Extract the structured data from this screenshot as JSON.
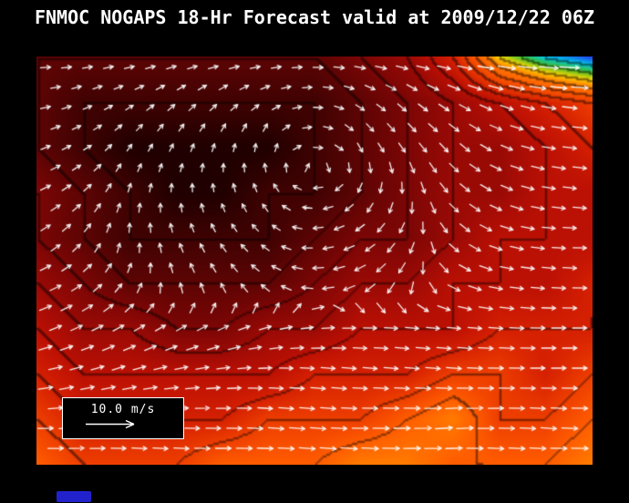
{
  "header": {
    "title": "FNMOC NOGAPS 18-Hr Forecast valid at 2009/12/22 06Z"
  },
  "legend": {
    "label": "10.0 m/s"
  },
  "colors": {
    "background": "#000000",
    "title_text": "#ffffff",
    "arrow": "#ffffff",
    "legend_border": "#ffffff",
    "legend_background": "#000000",
    "contour_line": "#000000",
    "footer_mark": "#2222cc"
  },
  "chart_data": {
    "type": "heatmap",
    "title": "FNMOC NOGAPS 18-Hr Forecast valid at 2009/12/22 06Z",
    "field": "wind speed shown as filled color contours",
    "overlay": "wind direction arrows (white vectors)",
    "legend_reference": "10.0 m/s",
    "axes_visible": false,
    "grid_rows": 10,
    "grid_cols": 13,
    "speed_levels_note": "relative color levels estimated from pixels; 0 = darkest maroon (upper-left core), 13 = blue (top-right jet maximum)",
    "speed_grid": [
      [
        2,
        2,
        2,
        2,
        2,
        2,
        2,
        3,
        4,
        6,
        10,
        12,
        13
      ],
      [
        2,
        1,
        1,
        1,
        1,
        1,
        1,
        2,
        3,
        4,
        5,
        6,
        7
      ],
      [
        2,
        1,
        0,
        0,
        0,
        0,
        1,
        2,
        3,
        4,
        4,
        5,
        6
      ],
      [
        3,
        2,
        1,
        0,
        0,
        1,
        1,
        2,
        3,
        4,
        4,
        5,
        5
      ],
      [
        3,
        2,
        1,
        1,
        1,
        1,
        2,
        3,
        3,
        4,
        5,
        5,
        5
      ],
      [
        4,
        3,
        2,
        2,
        2,
        2,
        3,
        4,
        4,
        5,
        5,
        5,
        6
      ],
      [
        5,
        4,
        4,
        3,
        3,
        4,
        4,
        5,
        5,
        5,
        6,
        6,
        6
      ],
      [
        6,
        5,
        5,
        5,
        5,
        5,
        6,
        6,
        6,
        7,
        7,
        6,
        7
      ],
      [
        7,
        6,
        6,
        6,
        6,
        7,
        7,
        7,
        8,
        9,
        7,
        7,
        8
      ],
      [
        8,
        7,
        7,
        7,
        8,
        8,
        8,
        9,
        9,
        8,
        8,
        8,
        9
      ]
    ],
    "wind_dir_deg_grid": [
      [
        0,
        -5,
        -8,
        -10,
        -8,
        -4,
        0,
        5,
        8,
        8,
        5,
        3,
        0
      ],
      [
        -10,
        -20,
        -30,
        -40,
        -40,
        -30,
        0,
        30,
        40,
        30,
        20,
        10,
        5
      ],
      [
        -20,
        -30,
        -55,
        -65,
        -75,
        -85,
        0,
        60,
        55,
        45,
        25,
        10,
        5
      ],
      [
        -25,
        -40,
        -75,
        -90,
        -105,
        -120,
        180,
        120,
        90,
        45,
        25,
        10,
        5
      ],
      [
        -30,
        -50,
        -90,
        -110,
        -125,
        -145,
        175,
        150,
        120,
        45,
        20,
        5,
        0
      ],
      [
        -20,
        -35,
        -60,
        -110,
        -125,
        -150,
        180,
        155,
        120,
        30,
        10,
        5,
        0
      ],
      [
        -20,
        -25,
        -30,
        -30,
        -25,
        -15,
        -5,
        0,
        5,
        5,
        5,
        0,
        0
      ],
      [
        -10,
        -15,
        -15,
        -10,
        -5,
        0,
        5,
        5,
        5,
        5,
        0,
        0,
        0
      ],
      [
        0,
        -5,
        -5,
        0,
        0,
        5,
        5,
        0,
        0,
        -5,
        0,
        5,
        0
      ],
      [
        0,
        0,
        5,
        5,
        0,
        0,
        5,
        5,
        0,
        0,
        5,
        0,
        0
      ]
    ],
    "wind_dir_convention": "degrees on screen: 0 = east (right), 90 = south (down), -90 = north (up), 180 = west",
    "colormap": [
      "#200000",
      "#400202",
      "#5e0404",
      "#7c0605",
      "#9a0a05",
      "#bb1004",
      "#d52002",
      "#ee3e00",
      "#ff5c00",
      "#ff7b00",
      "#ffd500",
      "#3fbf2f",
      "#00c8e8",
      "#2244ee"
    ],
    "contour_interval": 1
  }
}
